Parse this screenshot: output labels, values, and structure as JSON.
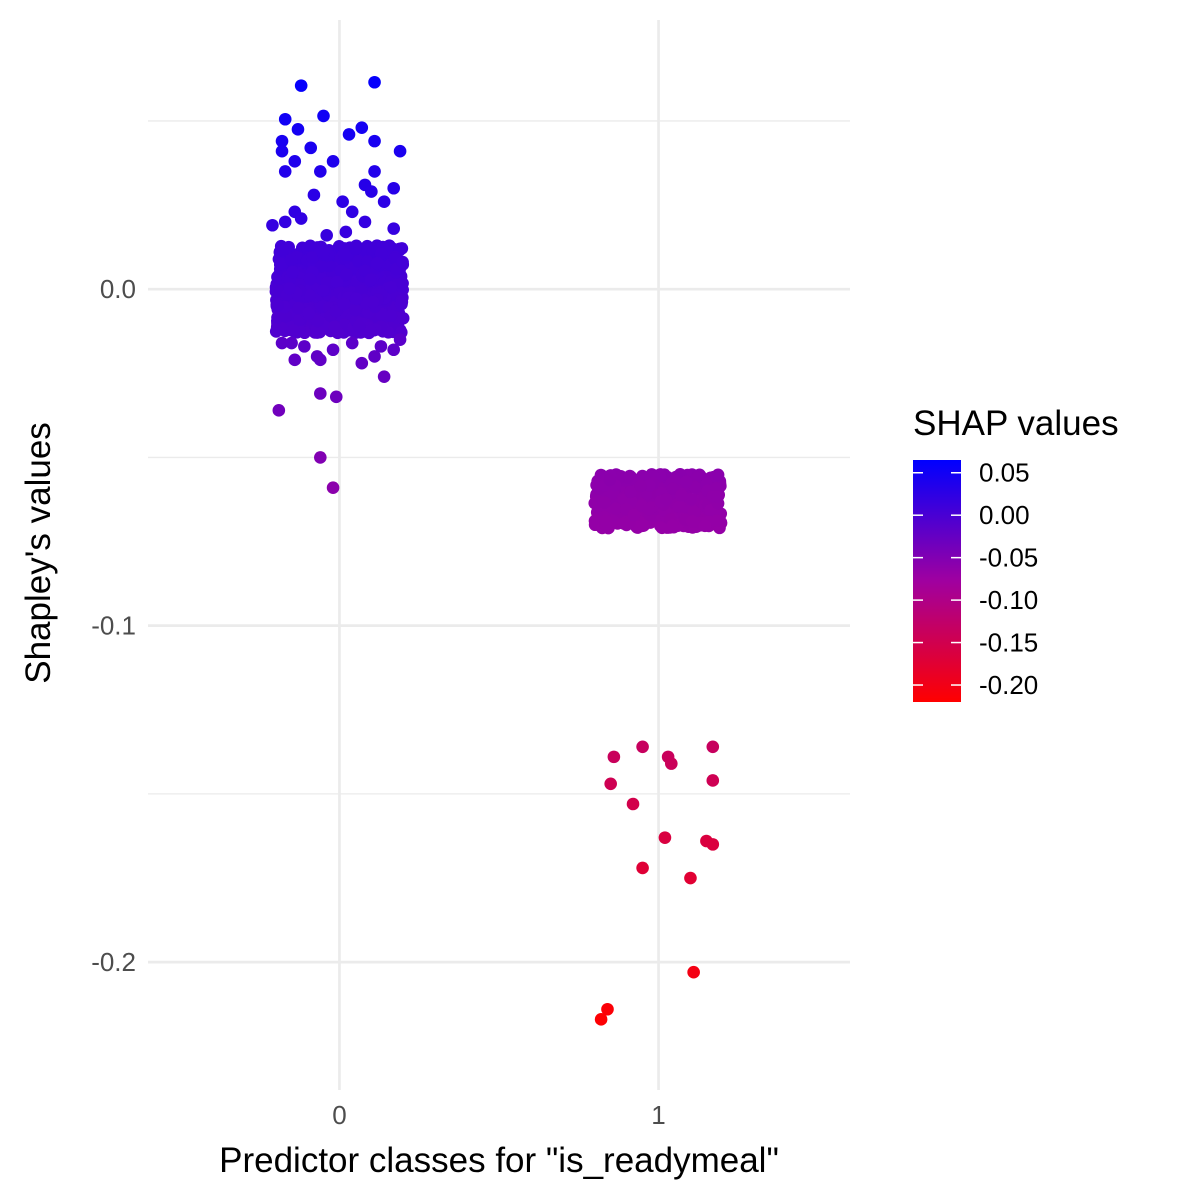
{
  "chart_data": {
    "type": "scatter",
    "title": "",
    "xlabel": "Predictor classes for \"is_readymeal\"",
    "ylabel": "Shapley's values",
    "x_categories": [
      "0",
      "1"
    ],
    "xlim": [
      -0.6,
      1.6
    ],
    "ylim": [
      -0.238,
      0.08
    ],
    "y_ticks": [
      0.0,
      -0.1,
      -0.2
    ],
    "y_tick_labels": [
      "0.0",
      "-0.1",
      "-0.2"
    ],
    "grid": true,
    "legend": {
      "title": "SHAP values",
      "placement": "right",
      "type": "colorbar",
      "low_color": "#ff0000",
      "mid_color": "#a000a0",
      "high_color": "#0000ff",
      "range": [
        -0.22,
        0.065
      ],
      "ticks": [
        0.05,
        0.0,
        -0.05,
        -0.1,
        -0.15,
        -0.2
      ],
      "tick_labels": [
        "0.05",
        "0.00",
        "-0.05",
        "-0.10",
        "-0.15",
        "-0.20"
      ]
    },
    "clusters": [
      {
        "class": "0",
        "jitter": 0.2,
        "band": [
          -0.013,
          0.013
        ],
        "count": 750,
        "color_value": 0.0
      },
      {
        "class": "1",
        "jitter": 0.2,
        "band": [
          -0.071,
          -0.055
        ],
        "count": 420,
        "color_value": -0.063
      }
    ],
    "points": [
      {
        "x": -0.12,
        "y": 0.0605,
        "c": 0.06
      },
      {
        "x": 0.11,
        "y": 0.0615,
        "c": 0.06
      },
      {
        "x": -0.17,
        "y": 0.0505,
        "c": 0.05
      },
      {
        "x": -0.05,
        "y": 0.0515,
        "c": 0.05
      },
      {
        "x": -0.13,
        "y": 0.0475,
        "c": 0.047
      },
      {
        "x": 0.07,
        "y": 0.048,
        "c": 0.047
      },
      {
        "x": 0.03,
        "y": 0.046,
        "c": 0.046
      },
      {
        "x": -0.18,
        "y": 0.044,
        "c": 0.044
      },
      {
        "x": -0.09,
        "y": 0.042,
        "c": 0.042
      },
      {
        "x": 0.11,
        "y": 0.044,
        "c": 0.044
      },
      {
        "x": 0.19,
        "y": 0.041,
        "c": 0.041
      },
      {
        "x": -0.18,
        "y": 0.041,
        "c": 0.041
      },
      {
        "x": -0.14,
        "y": 0.038,
        "c": 0.038
      },
      {
        "x": -0.02,
        "y": 0.038,
        "c": 0.038
      },
      {
        "x": -0.17,
        "y": 0.035,
        "c": 0.035
      },
      {
        "x": -0.06,
        "y": 0.035,
        "c": 0.035
      },
      {
        "x": 0.11,
        "y": 0.035,
        "c": 0.035
      },
      {
        "x": 0.08,
        "y": 0.031,
        "c": 0.031
      },
      {
        "x": 0.17,
        "y": 0.03,
        "c": 0.03
      },
      {
        "x": -0.08,
        "y": 0.028,
        "c": 0.028
      },
      {
        "x": 0.1,
        "y": 0.029,
        "c": 0.029
      },
      {
        "x": 0.14,
        "y": 0.026,
        "c": 0.026
      },
      {
        "x": 0.01,
        "y": 0.026,
        "c": 0.026
      },
      {
        "x": -0.14,
        "y": 0.023,
        "c": 0.023
      },
      {
        "x": -0.12,
        "y": 0.021,
        "c": 0.021
      },
      {
        "x": 0.04,
        "y": 0.023,
        "c": 0.023
      },
      {
        "x": 0.08,
        "y": 0.02,
        "c": 0.02
      },
      {
        "x": -0.17,
        "y": 0.02,
        "c": 0.02
      },
      {
        "x": -0.21,
        "y": 0.019,
        "c": 0.019
      },
      {
        "x": 0.17,
        "y": 0.018,
        "c": 0.018
      },
      {
        "x": 0.02,
        "y": 0.017,
        "c": 0.017
      },
      {
        "x": -0.04,
        "y": 0.016,
        "c": 0.016
      },
      {
        "x": -0.18,
        "y": -0.016,
        "c": -0.016
      },
      {
        "x": -0.15,
        "y": -0.016,
        "c": -0.016
      },
      {
        "x": -0.11,
        "y": -0.017,
        "c": -0.017
      },
      {
        "x": 0.04,
        "y": -0.016,
        "c": -0.016
      },
      {
        "x": 0.19,
        "y": -0.015,
        "c": -0.015
      },
      {
        "x": 0.13,
        "y": -0.017,
        "c": -0.017
      },
      {
        "x": -0.02,
        "y": -0.018,
        "c": -0.018
      },
      {
        "x": 0.17,
        "y": -0.018,
        "c": -0.018
      },
      {
        "x": -0.07,
        "y": -0.02,
        "c": -0.02
      },
      {
        "x": -0.14,
        "y": -0.021,
        "c": -0.021
      },
      {
        "x": 0.11,
        "y": -0.02,
        "c": -0.02
      },
      {
        "x": 0.07,
        "y": -0.022,
        "c": -0.022
      },
      {
        "x": -0.06,
        "y": -0.021,
        "c": -0.021
      },
      {
        "x": 0.14,
        "y": -0.026,
        "c": -0.026
      },
      {
        "x": -0.06,
        "y": -0.031,
        "c": -0.031
      },
      {
        "x": -0.01,
        "y": -0.032,
        "c": -0.032
      },
      {
        "x": -0.19,
        "y": -0.036,
        "c": -0.036
      },
      {
        "x": -0.06,
        "y": -0.05,
        "c": -0.05
      },
      {
        "x": -0.02,
        "y": -0.059,
        "c": -0.059
      },
      {
        "x": 0.95,
        "y": -0.136,
        "c": -0.136
      },
      {
        "x": 1.17,
        "y": -0.136,
        "c": -0.136
      },
      {
        "x": 0.86,
        "y": -0.139,
        "c": -0.139
      },
      {
        "x": 1.03,
        "y": -0.139,
        "c": -0.139
      },
      {
        "x": 1.04,
        "y": -0.141,
        "c": -0.141
      },
      {
        "x": 0.85,
        "y": -0.147,
        "c": -0.147
      },
      {
        "x": 1.17,
        "y": -0.146,
        "c": -0.146
      },
      {
        "x": 0.92,
        "y": -0.153,
        "c": -0.153
      },
      {
        "x": 1.02,
        "y": -0.163,
        "c": -0.163
      },
      {
        "x": 1.15,
        "y": -0.164,
        "c": -0.164
      },
      {
        "x": 1.17,
        "y": -0.165,
        "c": -0.165
      },
      {
        "x": 0.95,
        "y": -0.172,
        "c": -0.172
      },
      {
        "x": 1.1,
        "y": -0.175,
        "c": -0.175
      },
      {
        "x": 1.11,
        "y": -0.203,
        "c": -0.203
      },
      {
        "x": 0.84,
        "y": -0.214,
        "c": -0.214
      },
      {
        "x": 0.82,
        "y": -0.217,
        "c": -0.217
      }
    ]
  }
}
